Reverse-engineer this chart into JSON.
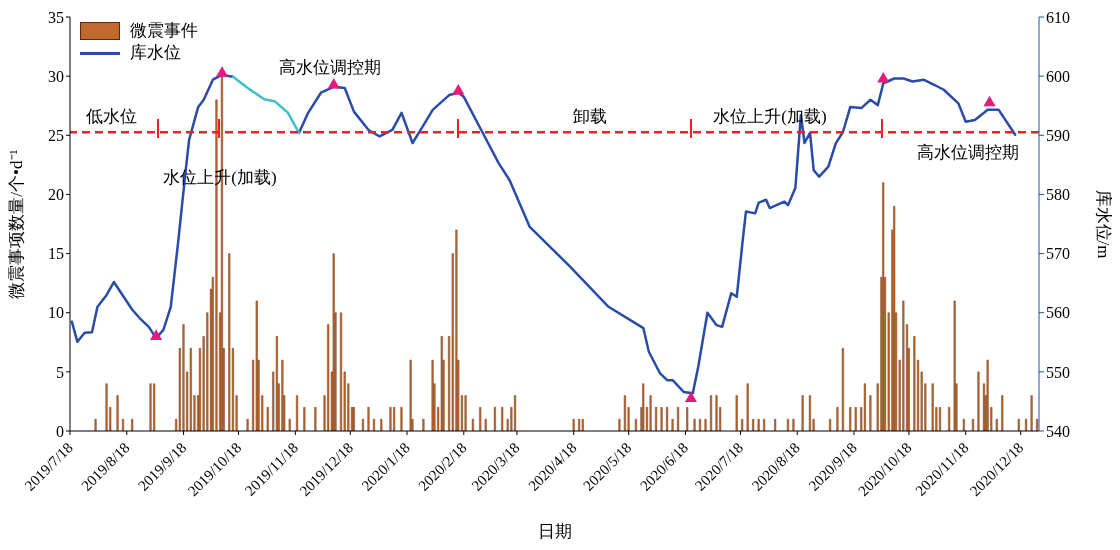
{
  "chart_data": {
    "type": "bar",
    "xlabel": "日期",
    "ylabel": "微震事项数量/个•d⁻¹",
    "y2label": "库水位/m",
    "xlim": [
      "2019-07-18",
      "2020-12-28"
    ],
    "xticks": [
      {
        "value": "2019-07-18",
        "label": "2019/7/18"
      },
      {
        "value": "2019-08-18",
        "label": "2019/8/18"
      },
      {
        "value": "2019-09-18",
        "label": "2019/9/18"
      },
      {
        "value": "2019-10-18",
        "label": "2019/10/18"
      },
      {
        "value": "2019-11-18",
        "label": "2019/11/18"
      },
      {
        "value": "2019-12-18",
        "label": "2019/12/18"
      },
      {
        "value": "2020-01-18",
        "label": "2020/1/18"
      },
      {
        "value": "2020-02-18",
        "label": "2020/2/18"
      },
      {
        "value": "2020-03-18",
        "label": "2020/3/18"
      },
      {
        "value": "2020-04-18",
        "label": "2020/4/18"
      },
      {
        "value": "2020-05-18",
        "label": "2020/5/18"
      },
      {
        "value": "2020-06-18",
        "label": "2020/6/18"
      },
      {
        "value": "2020-07-18",
        "label": "2020/7/18"
      },
      {
        "value": "2020-08-18",
        "label": "2020/8/18"
      },
      {
        "value": "2020-09-18",
        "label": "2020/9/18"
      },
      {
        "value": "2020-10-18",
        "label": "2020/10/18"
      },
      {
        "value": "2020-11-18",
        "label": "2020/11/18"
      },
      {
        "value": "2020-12-18",
        "label": "2020/12/18"
      }
    ],
    "ylim": [
      0,
      35
    ],
    "yticks": [
      0,
      5,
      10,
      15,
      20,
      25,
      30,
      35
    ],
    "y2lim": [
      540,
      610
    ],
    "y2ticks": [
      540,
      550,
      560,
      570,
      580,
      590,
      600,
      610
    ],
    "grid": false,
    "legend": "top left",
    "series": [
      {
        "name": "微震事件",
        "color": "#c0692e",
        "x": [
          "2019-08-01",
          "2019-08-07",
          "2019-08-09",
          "2019-08-13",
          "2019-08-16",
          "2019-08-21",
          "2019-08-31",
          "2019-09-02",
          "2019-09-14",
          "2019-09-16",
          "2019-09-18",
          "2019-09-20",
          "2019-09-22",
          "2019-09-24",
          "2019-09-26",
          "2019-09-27",
          "2019-09-29",
          "2019-10-01",
          "2019-10-03",
          "2019-10-04",
          "2019-10-06",
          "2019-10-08",
          "2019-10-09",
          "2019-10-10",
          "2019-10-13",
          "2019-10-15",
          "2019-10-17",
          "2019-10-23",
          "2019-10-26",
          "2019-10-28",
          "2019-10-29",
          "2019-10-31",
          "2019-11-03",
          "2019-11-06",
          "2019-11-08",
          "2019-11-09",
          "2019-11-11",
          "2019-11-12",
          "2019-11-15",
          "2019-11-19",
          "2019-11-23",
          "2019-11-29",
          "2019-12-04",
          "2019-12-06",
          "2019-12-08",
          "2019-12-09",
          "2019-12-10",
          "2019-12-13",
          "2019-12-15",
          "2019-12-17",
          "2019-12-19",
          "2019-12-20",
          "2019-12-25",
          "2019-12-28",
          "2019-12-31",
          "2020-01-04",
          "2020-01-09",
          "2020-01-11",
          "2020-01-15",
          "2020-01-20",
          "2020-01-21",
          "2020-01-27",
          "2020-02-01",
          "2020-02-02",
          "2020-02-04",
          "2020-02-06",
          "2020-02-07",
          "2020-02-10",
          "2020-02-12",
          "2020-02-14",
          "2020-02-15",
          "2020-02-17",
          "2020-02-19",
          "2020-02-23",
          "2020-02-27",
          "2020-03-01",
          "2020-03-06",
          "2020-03-10",
          "2020-03-13",
          "2020-03-15",
          "2020-03-17",
          "2020-04-18",
          "2020-04-21",
          "2020-04-23",
          "2020-05-13",
          "2020-05-16",
          "2020-05-18",
          "2020-05-22",
          "2020-05-25",
          "2020-05-26",
          "2020-05-28",
          "2020-05-30",
          "2020-06-02",
          "2020-06-05",
          "2020-06-08",
          "2020-06-11",
          "2020-06-14",
          "2020-06-19",
          "2020-06-23",
          "2020-06-26",
          "2020-06-29",
          "2020-07-02",
          "2020-07-05",
          "2020-07-07",
          "2020-07-16",
          "2020-07-19",
          "2020-07-22",
          "2020-07-25",
          "2020-07-28",
          "2020-07-31",
          "2020-08-06",
          "2020-08-13",
          "2020-08-16",
          "2020-08-21",
          "2020-08-25",
          "2020-08-27",
          "2020-09-05",
          "2020-09-09",
          "2020-09-12",
          "2020-09-16",
          "2020-09-19",
          "2020-09-22",
          "2020-09-24",
          "2020-09-27",
          "2020-10-01",
          "2020-10-03",
          "2020-10-04",
          "2020-10-05",
          "2020-10-07",
          "2020-10-09",
          "2020-10-10",
          "2020-10-11",
          "2020-10-13",
          "2020-10-15",
          "2020-10-17",
          "2020-10-18",
          "2020-10-21",
          "2020-10-23",
          "2020-10-25",
          "2020-10-27",
          "2020-10-31",
          "2020-11-02",
          "2020-11-04",
          "2020-11-09",
          "2020-11-12",
          "2020-11-13",
          "2020-11-17",
          "2020-11-22",
          "2020-11-25",
          "2020-11-28",
          "2020-11-29",
          "2020-11-30",
          "2020-12-02",
          "2020-12-05",
          "2020-12-08",
          "2020-12-17",
          "2020-12-21",
          "2020-12-24",
          "2020-12-27"
        ],
        "values": [
          1,
          4,
          2,
          3,
          1,
          1,
          4,
          4,
          1,
          7,
          9,
          5,
          7,
          3,
          3,
          7,
          8,
          10,
          12,
          13,
          28,
          10,
          30,
          7,
          15,
          7,
          3,
          1,
          6,
          11,
          6,
          3,
          2,
          5,
          8,
          4,
          6,
          3,
          1,
          3,
          2,
          2,
          3,
          9,
          5,
          15,
          10,
          10,
          5,
          4,
          2,
          2,
          1,
          2,
          1,
          1,
          2,
          2,
          2,
          6,
          1,
          1,
          6,
          4,
          2,
          8,
          6,
          8,
          15,
          17,
          6,
          3,
          3,
          1,
          2,
          1,
          2,
          2,
          1,
          2,
          3,
          1,
          1,
          1,
          1,
          3,
          2,
          1,
          2,
          4,
          2,
          3,
          2,
          2,
          2,
          1,
          2,
          2,
          1,
          1,
          1,
          3,
          3,
          2,
          3,
          1,
          4,
          1,
          1,
          1,
          1,
          1,
          1,
          3,
          3,
          1,
          1,
          2,
          7,
          2,
          2,
          2,
          4,
          3,
          4,
          13,
          21,
          13,
          10,
          17,
          19,
          10,
          6,
          11,
          9,
          7,
          8,
          6,
          5,
          4,
          4,
          2,
          2,
          2,
          11,
          4,
          1,
          1,
          5,
          4,
          3,
          6,
          2,
          1,
          3,
          1,
          1,
          3,
          1
        ]
      },
      {
        "name": "库水位",
        "type": "line",
        "axis": "y2",
        "color": "#2a4ca8",
        "x": [
          "2019-07-19",
          "2019-07-22",
          "2019-07-26",
          "2019-07-30",
          "2019-08-02",
          "2019-08-07",
          "2019-08-11",
          "2019-08-15",
          "2019-08-21",
          "2019-08-25",
          "2019-08-30",
          "2019-09-03",
          "2019-09-07",
          "2019-09-11",
          "2019-09-15",
          "2019-09-19",
          "2019-09-21",
          "2019-09-26",
          "2019-09-29",
          "2019-10-04",
          "2019-10-09",
          "2019-10-15",
          "2019-10-23",
          "2019-11-20",
          "2019-11-25",
          "2019-12-02",
          "2019-12-09",
          "2019-12-15",
          "2019-12-20",
          "2019-12-28",
          "2020-01-03",
          "2020-01-10",
          "2020-01-15",
          "2020-01-21",
          "2020-01-26",
          "2020-02-01",
          "2020-02-10",
          "2020-02-15",
          "2020-02-18",
          "2020-02-28",
          "2020-03-08",
          "2020-03-14",
          "2020-03-25",
          "2020-04-16",
          "2020-05-07",
          "2020-05-26",
          "2020-05-29",
          "2020-06-04",
          "2020-06-08",
          "2020-06-11",
          "2020-06-17",
          "2020-06-22",
          "2020-06-25",
          "2020-06-30",
          "2020-07-05",
          "2020-07-08",
          "2020-07-13",
          "2020-07-16",
          "2020-07-19",
          "2020-07-21",
          "2020-07-26",
          "2020-07-28",
          "2020-08-01",
          "2020-08-03",
          "2020-08-11",
          "2020-08-13",
          "2020-08-17",
          "2020-08-20",
          "2020-08-22",
          "2020-08-25",
          "2020-08-27",
          "2020-08-30",
          "2020-09-04",
          "2020-09-08",
          "2020-09-12",
          "2020-09-16",
          "2020-09-22",
          "2020-09-27",
          "2020-10-01",
          "2020-10-04",
          "2020-10-10",
          "2020-10-15",
          "2020-10-20",
          "2020-10-26",
          "2020-11-01",
          "2020-11-06",
          "2020-11-14",
          "2020-11-18",
          "2020-11-23",
          "2020-11-30",
          "2020-12-06",
          "2020-12-15"
        ],
        "values": [
          558.5,
          555.1,
          556.6,
          556.7,
          561.0,
          563.0,
          565.2,
          563.3,
          560.5,
          559.1,
          557.6,
          555.7,
          557.1,
          561.0,
          571.8,
          583.6,
          589.2,
          594.8,
          596.0,
          599.4,
          600.2,
          599.9,
          null,
          590.4,
          593.8,
          597.2,
          598.2,
          598.0,
          594.0,
          590.9,
          589.8,
          590.9,
          593.8,
          588.7,
          591.2,
          594.3,
          596.8,
          597.2,
          596.5,
          590.6,
          585.3,
          582.4,
          574.5,
          567.8,
          561.0,
          557.4,
          553.4,
          549.8,
          548.6,
          548.6,
          546.6,
          546.4,
          550.9,
          560.0,
          557.9,
          557.6,
          563.3,
          562.7,
          571.5,
          577.1,
          576.8,
          578.6,
          579.1,
          577.7,
          578.8,
          578.2,
          581.1,
          593.4,
          588.7,
          590.4,
          584.1,
          583.0,
          584.7,
          588.6,
          590.6,
          594.8,
          594.6,
          596.0,
          595.1,
          598.8,
          599.6,
          599.6,
          599.1,
          599.4,
          598.5,
          597.7,
          595.4,
          592.3,
          592.6,
          594.3,
          594.3,
          590.1
        ]
      },
      {
        "type": "line",
        "axis": "y2",
        "color": "#3fbfca",
        "x": [
          "2019-10-15",
          "2019-10-23",
          "2019-11-01",
          "2019-11-07",
          "2019-11-14",
          "2019-11-20"
        ],
        "values": [
          599.9,
          598.0,
          596.1,
          595.7,
          593.8,
          590.4
        ]
      },
      {
        "type": "scatter",
        "axis": "y2",
        "marker": "triangle",
        "color": "#e6197f",
        "x": [
          "2019-09-03",
          "2019-10-09",
          "2019-12-09",
          "2020-02-15",
          "2020-06-21",
          "2020-10-04",
          "2020-12-01"
        ],
        "values": [
          556.0,
          600.5,
          598.5,
          597.5,
          545.5,
          599.5,
          595.5
        ]
      }
    ],
    "ref_lines": [
      {
        "axis": "y2",
        "value": 590.5,
        "color": "#e8202a",
        "line_style": "dashed"
      }
    ],
    "annotations": [
      "低水位",
      "水位上升(加载)",
      "高水位调控期",
      "卸载",
      "水位上升(加载)",
      "高水位调控期"
    ]
  }
}
